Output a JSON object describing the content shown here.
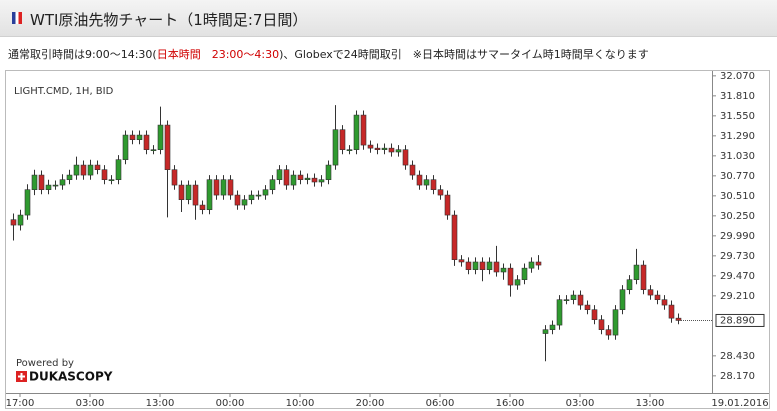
{
  "header": {
    "title": "WTI原油先物チャート（1時間足:7日間）",
    "note": [
      "通常取引時間は9:00～14:30(",
      "日本時間　23:00～4:30",
      ")、Globexで24時間取引　※日本時間はサマータイム時1時間早くなります"
    ]
  },
  "chart_data": {
    "type": "candlestick",
    "instrument": "LIGHT.CMD, 1H, BID",
    "credit": "Powered by",
    "brand": "DUKASCOPY",
    "up_color": "#2f9a2f",
    "down_color": "#c62828",
    "categories": [
      null,
      "17:00",
      null,
      null,
      null,
      null,
      null,
      null,
      null,
      null,
      null,
      "03:00",
      null,
      null,
      null,
      null,
      null,
      null,
      null,
      null,
      null,
      "13:00",
      null,
      null,
      null,
      null,
      null,
      null,
      null,
      null,
      null,
      "00:00",
      null,
      null,
      null,
      null,
      null,
      null,
      null,
      null,
      null,
      "10:00",
      null,
      null,
      null,
      null,
      null,
      null,
      null,
      null,
      null,
      "20:00",
      null,
      null,
      null,
      null,
      null,
      null,
      null,
      null,
      null,
      "06:00",
      null,
      null,
      null,
      null,
      null,
      null,
      null,
      null,
      null,
      "16:00",
      null,
      null,
      null,
      null,
      null,
      null,
      null,
      null,
      null,
      "03:00",
      null,
      null,
      null,
      null,
      null,
      null,
      null,
      null,
      null,
      "13:00",
      null,
      null,
      null,
      null
    ],
    "x_end_label": "19.01.2016",
    "open": [
      30.2,
      30.13,
      30.26,
      30.59,
      30.78,
      30.59,
      30.65,
      30.65,
      30.72,
      30.78,
      30.91,
      30.78,
      30.91,
      30.85,
      30.72,
      30.72,
      30.98,
      31.3,
      31.24,
      31.3,
      31.11,
      31.11,
      31.43,
      30.85,
      30.65,
      30.46,
      30.65,
      30.39,
      30.33,
      30.72,
      30.52,
      30.72,
      30.52,
      30.39,
      30.46,
      30.52,
      30.52,
      30.59,
      30.72,
      30.85,
      30.65,
      30.78,
      30.72,
      30.74,
      30.69,
      30.72,
      30.91,
      31.37,
      31.11,
      31.11,
      31.56,
      31.17,
      31.13,
      31.11,
      31.13,
      31.08,
      31.11,
      30.91,
      30.78,
      30.65,
      30.72,
      30.59,
      30.52,
      30.26,
      29.68,
      29.65,
      29.55,
      29.65,
      29.55,
      29.65,
      29.52,
      29.57,
      29.35,
      29.42,
      29.57,
      29.65,
      28.72,
      28.77,
      28.83,
      29.16,
      29.16,
      29.22,
      29.09,
      29.03,
      28.9,
      28.77,
      28.7,
      29.03,
      29.29,
      29.42,
      29.61,
      29.29,
      29.22,
      29.16,
      29.09,
      28.92
    ],
    "high": [
      30.28,
      30.33,
      30.66,
      30.85,
      30.84,
      30.72,
      30.71,
      30.79,
      30.85,
      31.02,
      30.97,
      30.98,
      30.97,
      30.91,
      30.78,
      31.04,
      31.36,
      31.36,
      31.36,
      31.36,
      31.17,
      31.67,
      31.49,
      30.91,
      30.71,
      30.71,
      30.71,
      30.45,
      30.78,
      30.78,
      30.78,
      30.78,
      30.58,
      30.52,
      30.58,
      30.58,
      30.65,
      30.78,
      30.91,
      30.91,
      30.84,
      30.84,
      30.8,
      30.8,
      30.78,
      30.97,
      31.69,
      31.43,
      31.17,
      31.62,
      31.62,
      31.23,
      31.19,
      31.19,
      31.19,
      31.17,
      31.17,
      30.97,
      30.84,
      30.78,
      30.78,
      30.65,
      30.58,
      30.32,
      29.74,
      29.71,
      29.71,
      29.71,
      29.71,
      29.86,
      29.63,
      29.63,
      29.48,
      29.63,
      29.71,
      29.74,
      28.83,
      28.89,
      29.22,
      29.22,
      29.28,
      29.28,
      29.15,
      29.09,
      28.96,
      28.83,
      29.09,
      29.35,
      29.48,
      29.82,
      29.67,
      29.35,
      29.28,
      29.22,
      29.15,
      28.98
    ],
    "low": [
      29.93,
      30.06,
      30.2,
      30.52,
      30.53,
      30.53,
      30.59,
      30.59,
      30.66,
      30.72,
      30.72,
      30.72,
      30.79,
      30.66,
      30.66,
      30.66,
      30.92,
      31.18,
      31.18,
      31.05,
      31.05,
      31.05,
      30.23,
      30.59,
      30.3,
      30.4,
      30.2,
      30.27,
      30.27,
      30.46,
      30.46,
      30.46,
      30.33,
      30.33,
      30.4,
      30.46,
      30.46,
      30.53,
      30.66,
      30.59,
      30.59,
      30.66,
      30.66,
      30.63,
      30.63,
      30.66,
      30.85,
      31.05,
      31.05,
      31.05,
      31.11,
      31.07,
      31.05,
      31.05,
      31.02,
      31.02,
      30.85,
      30.72,
      30.59,
      30.59,
      30.53,
      30.46,
      30.2,
      29.6,
      29.59,
      29.49,
      29.49,
      29.4,
      29.49,
      29.46,
      29.42,
      29.2,
      29.29,
      29.36,
      29.51,
      29.55,
      28.36,
      28.71,
      28.77,
      29.1,
      29.1,
      29.03,
      28.97,
      28.84,
      28.71,
      28.64,
      28.64,
      28.97,
      29.23,
      29.36,
      29.23,
      29.16,
      29.1,
      29.03,
      28.86,
      28.84
    ],
    "close": [
      30.13,
      30.26,
      30.59,
      30.78,
      30.59,
      30.65,
      30.65,
      30.72,
      30.78,
      30.91,
      30.78,
      30.91,
      30.85,
      30.72,
      30.72,
      30.98,
      31.3,
      31.24,
      31.3,
      31.11,
      31.11,
      31.43,
      30.85,
      30.65,
      30.46,
      30.65,
      30.39,
      30.33,
      30.72,
      30.52,
      30.72,
      30.52,
      30.39,
      30.46,
      30.52,
      30.52,
      30.59,
      30.72,
      30.85,
      30.65,
      30.78,
      30.72,
      30.74,
      30.69,
      30.72,
      30.91,
      31.37,
      31.11,
      31.11,
      31.56,
      31.17,
      31.13,
      31.11,
      31.13,
      31.08,
      31.11,
      30.91,
      30.78,
      30.65,
      30.72,
      30.59,
      30.52,
      30.26,
      29.68,
      29.65,
      29.55,
      29.65,
      29.55,
      29.65,
      29.52,
      29.57,
      29.35,
      29.42,
      29.57,
      29.65,
      29.61,
      28.77,
      28.83,
      29.16,
      29.16,
      29.22,
      29.09,
      29.03,
      28.9,
      28.77,
      28.7,
      29.03,
      29.29,
      29.42,
      29.61,
      29.29,
      29.22,
      29.16,
      29.09,
      28.92,
      28.89
    ],
    "last_price_label": "28.890",
    "ylim": [
      27.96,
      32.12
    ],
    "yticks": [
      {
        "value": 32.07,
        "label": "32.070"
      },
      {
        "value": 31.81,
        "label": "31.810"
      },
      {
        "value": 31.55,
        "label": "31.550"
      },
      {
        "value": 31.29,
        "label": "31.290"
      },
      {
        "value": 31.03,
        "label": "31.030"
      },
      {
        "value": 30.77,
        "label": "30.770"
      },
      {
        "value": 30.51,
        "label": "30.510"
      },
      {
        "value": 30.25,
        "label": "30.250"
      },
      {
        "value": 29.99,
        "label": "29.990"
      },
      {
        "value": 29.73,
        "label": "29.730"
      },
      {
        "value": 29.47,
        "label": "29.470"
      },
      {
        "value": 29.21,
        "label": "29.210"
      },
      {
        "value": 28.43,
        "label": "28.430"
      },
      {
        "value": 28.17,
        "label": "28.170"
      }
    ],
    "grid": false
  }
}
